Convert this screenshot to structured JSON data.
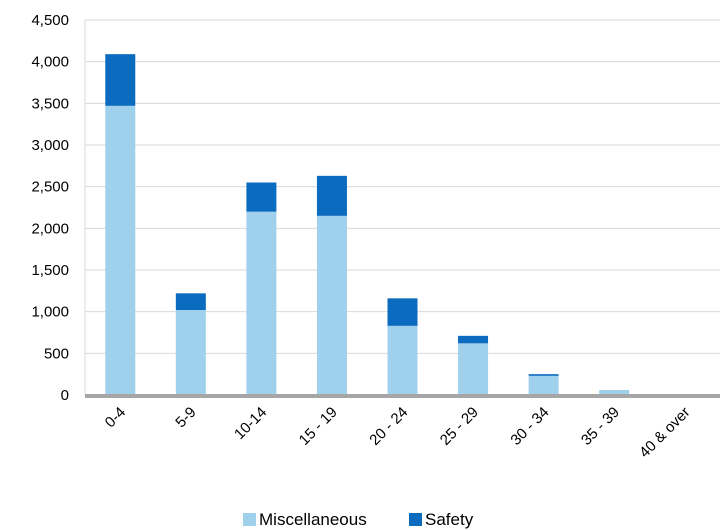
{
  "chart_data": {
    "type": "bar",
    "stacked": true,
    "categories": [
      "0-4",
      "5-9",
      "10-14",
      "15 - 19",
      "20 - 24",
      "25 - 29",
      "30 - 34",
      "35 - 39",
      "40 & over"
    ],
    "series": [
      {
        "name": "Miscellaneous",
        "color": "#9fd0ec",
        "values": [
          3470,
          1020,
          2200,
          2150,
          830,
          620,
          230,
          60,
          10
        ]
      },
      {
        "name": "Safety",
        "color": "#0b6bbf",
        "values": [
          620,
          200,
          350,
          480,
          330,
          90,
          20,
          0,
          0
        ]
      }
    ],
    "y_ticks": [
      "0",
      "500",
      "1,000",
      "1,500",
      "2,000",
      "2,500",
      "3,000",
      "3,500",
      "4,000",
      "4,500"
    ],
    "ylim": [
      0,
      4500
    ],
    "grid": true,
    "legend_position": "bottom",
    "title": "",
    "xlabel": "",
    "ylabel": ""
  },
  "colors": {
    "grid": "#d9d9d9",
    "axis": "#a6a6a6"
  }
}
